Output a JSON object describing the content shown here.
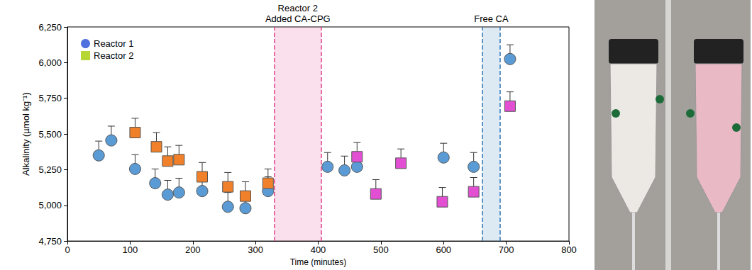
{
  "chart_data": {
    "type": "scatter",
    "x_label": "Time (minutes)",
    "y_label": "Alkalinity (µmol kg⁻¹)",
    "xlim": [
      0,
      800
    ],
    "xticks": [
      0,
      100,
      200,
      300,
      400,
      500,
      600,
      700,
      800
    ],
    "ylim": [
      4750,
      6250
    ],
    "yticks": [
      4750,
      5000,
      5250,
      5500,
      5750,
      6000,
      6250
    ],
    "grid": false,
    "legend": "upper left",
    "series": [
      {
        "name": "Reactor 1",
        "marker": "circle",
        "color": "#5b9bd5",
        "x": [
          50,
          70,
          108,
          140,
          160,
          178,
          215,
          256,
          284,
          320,
          415,
          442,
          462,
          600,
          648,
          706
        ],
        "values": [
          5350,
          5455,
          5255,
          5155,
          5075,
          5090,
          5100,
          4990,
          4980,
          5100,
          5270,
          5245,
          5270,
          5335,
          5270,
          6025
        ],
        "error_plus": [
          100,
          100,
          100,
          100,
          100,
          100,
          100,
          100,
          100,
          100,
          100,
          100,
          100,
          100,
          100,
          100
        ]
      },
      {
        "name": "Reactor 2",
        "marker": "square",
        "color": "#f0802a",
        "colors": [
          "#f0802a",
          "#f0802a",
          "#f0802a",
          "#f0802a",
          "#f0802a",
          "#f0802a",
          "#f0802a",
          "#f0802a",
          "#e24fd3",
          "#e24fd3",
          "#e24fd3",
          "#e24fd3",
          "#e24fd3",
          "#e24fd3"
        ],
        "x": [
          108,
          142,
          160,
          178,
          215,
          256,
          284,
          320,
          462,
          492,
          532,
          598,
          648,
          706
        ],
        "values": [
          5510,
          5410,
          5310,
          5320,
          5200,
          5130,
          5065,
          5155,
          5340,
          5080,
          5295,
          5025,
          5095,
          5695
        ],
        "error_plus": [
          100,
          100,
          100,
          100,
          100,
          100,
          100,
          100,
          100,
          100,
          100,
          100,
          100,
          100
        ]
      }
    ],
    "shaded_regions": [
      {
        "xlim": [
          330,
          405
        ],
        "label": [
          "Reactor 2",
          "Added CA-CPG"
        ],
        "color": "#e0408a"
      },
      {
        "xlim": [
          662,
          690
        ],
        "label": [
          "Free CA"
        ],
        "color": "#2e75b6"
      }
    ]
  }
}
